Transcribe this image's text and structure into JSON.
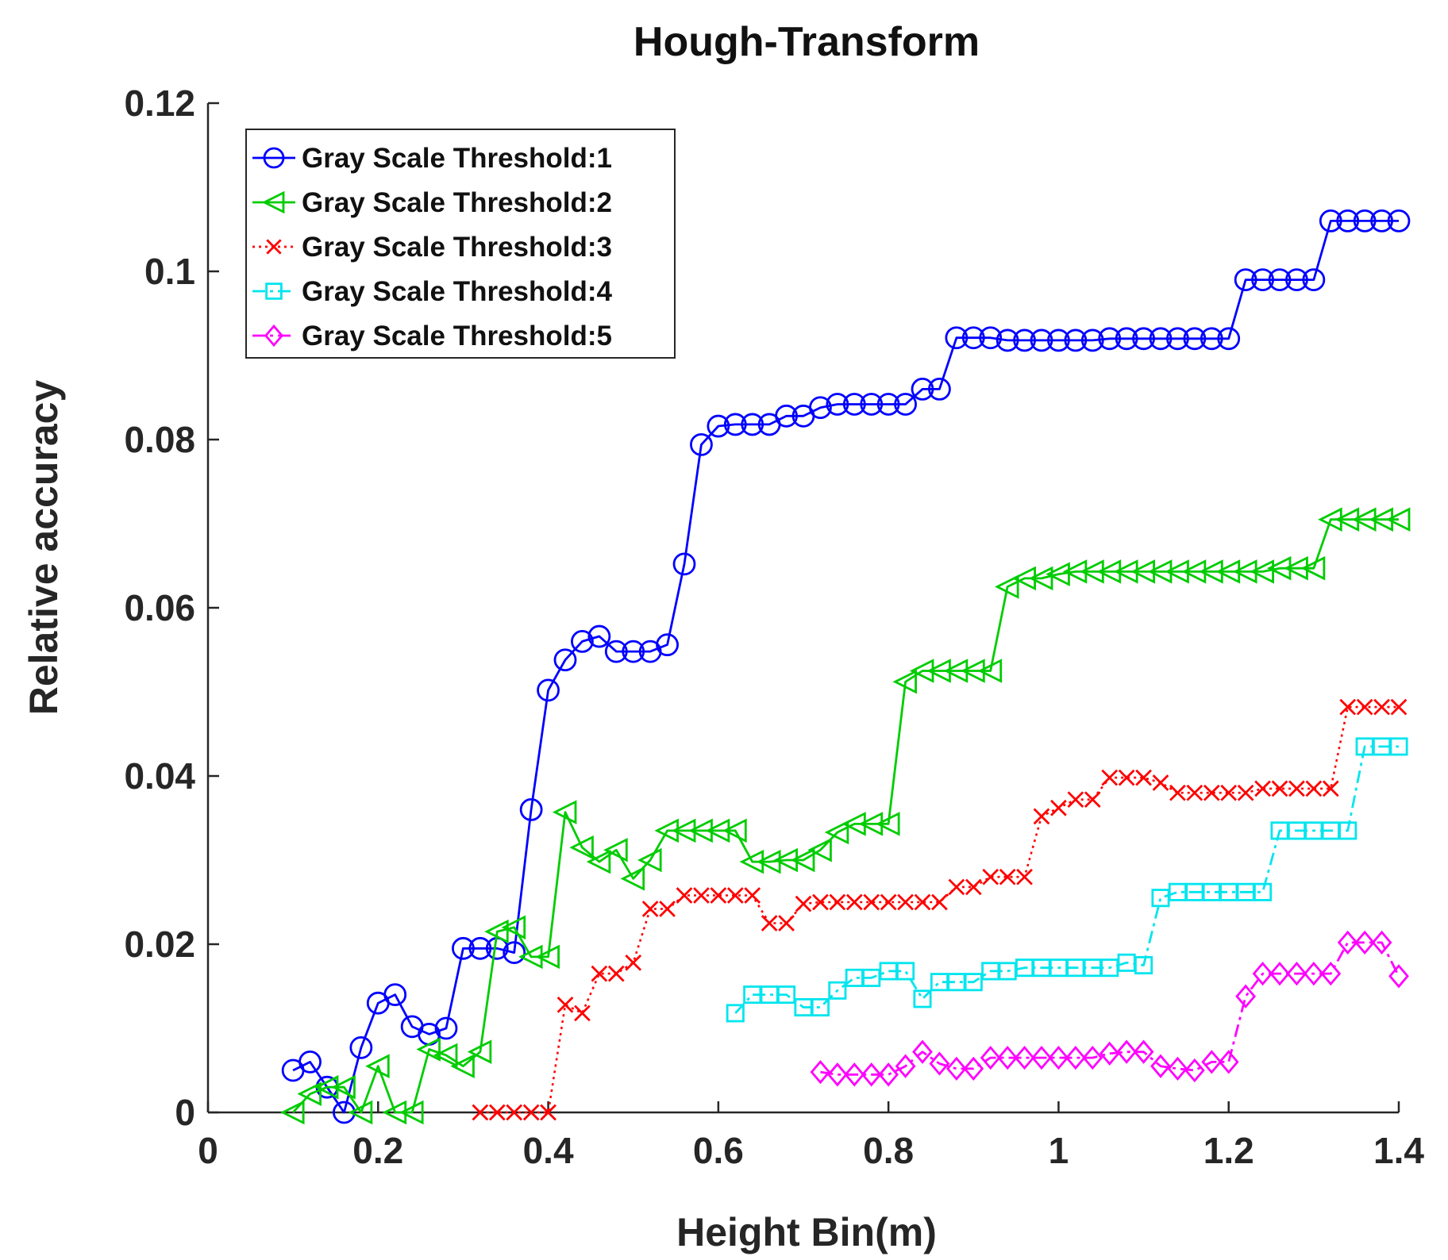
{
  "chart_data": {
    "type": "line",
    "title": "Hough-Transform",
    "xlabel": "Height Bin(m)",
    "ylabel": "Relative accuracy",
    "xlim": [
      0,
      1.4
    ],
    "ylim": [
      0,
      0.12
    ],
    "xticks": [
      0,
      0.2,
      0.4,
      0.6,
      0.8,
      1,
      1.2,
      1.4
    ],
    "yticks": [
      0,
      0.02,
      0.04,
      0.06,
      0.08,
      0.1,
      0.12
    ],
    "xtick_labels": [
      "0",
      "0.2",
      "0.4",
      "0.6",
      "0.8",
      "1",
      "1.2",
      "1.4"
    ],
    "ytick_labels": [
      "0",
      "0.02",
      "0.04",
      "0.06",
      "0.08",
      "0.1",
      "0.12"
    ],
    "grid": false,
    "legend_position": "top-left",
    "series": [
      {
        "name": "Gray Scale Threshold:1",
        "color": "#0000ff",
        "marker": "circle",
        "line_style": "solid",
        "x": [
          0.1,
          0.12,
          0.14,
          0.16,
          0.18,
          0.2,
          0.22,
          0.24,
          0.26,
          0.28,
          0.3,
          0.32,
          0.34,
          0.36,
          0.38,
          0.4,
          0.42,
          0.44,
          0.46,
          0.48,
          0.5,
          0.52,
          0.54,
          0.56,
          0.58,
          0.6,
          0.62,
          0.64,
          0.66,
          0.68,
          0.7,
          0.72,
          0.74,
          0.76,
          0.78,
          0.8,
          0.82,
          0.84,
          0.86,
          0.88,
          0.9,
          0.92,
          0.94,
          0.96,
          0.98,
          1.0,
          1.02,
          1.04,
          1.06,
          1.08,
          1.1,
          1.12,
          1.14,
          1.16,
          1.18,
          1.2,
          1.22,
          1.24,
          1.26,
          1.28,
          1.3,
          1.32,
          1.34,
          1.36,
          1.38,
          1.4
        ],
        "y": [
          0.005,
          0.006,
          0.003,
          0.0,
          0.0077,
          0.013,
          0.014,
          0.0102,
          0.0093,
          0.01,
          0.0195,
          0.0195,
          0.0195,
          0.019,
          0.036,
          0.0502,
          0.0538,
          0.056,
          0.0566,
          0.0548,
          0.0548,
          0.0548,
          0.0556,
          0.0652,
          0.0794,
          0.0816,
          0.0818,
          0.0818,
          0.0818,
          0.0828,
          0.0828,
          0.0838,
          0.0842,
          0.0842,
          0.0842,
          0.0842,
          0.0842,
          0.086,
          0.086,
          0.0921,
          0.0921,
          0.0921,
          0.0918,
          0.0918,
          0.0918,
          0.0918,
          0.0918,
          0.0918,
          0.092,
          0.092,
          0.092,
          0.092,
          0.092,
          0.092,
          0.092,
          0.092,
          0.099,
          0.099,
          0.099,
          0.099,
          0.099,
          0.106,
          0.106,
          0.106,
          0.106,
          0.106
        ]
      },
      {
        "name": "Gray Scale Threshold:2",
        "color": "#00cc00",
        "marker": "triangle-left",
        "line_style": "solid",
        "x": [
          0.1,
          0.12,
          0.14,
          0.16,
          0.18,
          0.2,
          0.22,
          0.24,
          0.26,
          0.28,
          0.3,
          0.32,
          0.34,
          0.36,
          0.38,
          0.4,
          0.42,
          0.44,
          0.46,
          0.48,
          0.5,
          0.52,
          0.54,
          0.56,
          0.58,
          0.6,
          0.62,
          0.64,
          0.66,
          0.68,
          0.7,
          0.72,
          0.74,
          0.76,
          0.78,
          0.8,
          0.82,
          0.84,
          0.86,
          0.88,
          0.9,
          0.92,
          0.94,
          0.96,
          0.98,
          1.0,
          1.02,
          1.04,
          1.06,
          1.08,
          1.1,
          1.12,
          1.14,
          1.16,
          1.18,
          1.2,
          1.22,
          1.24,
          1.26,
          1.28,
          1.3,
          1.32,
          1.34,
          1.36,
          1.38,
          1.4
        ],
        "y": [
          0.0,
          0.0022,
          0.003,
          0.003,
          0.0,
          0.0055,
          0.0,
          0.0,
          0.0075,
          0.0068,
          0.0055,
          0.0072,
          0.0215,
          0.022,
          0.0185,
          0.0185,
          0.0357,
          0.0315,
          0.0298,
          0.0312,
          0.0278,
          0.03,
          0.0335,
          0.0335,
          0.0335,
          0.0335,
          0.0335,
          0.0298,
          0.0298,
          0.03,
          0.03,
          0.0312,
          0.0333,
          0.0343,
          0.0343,
          0.0343,
          0.0512,
          0.0525,
          0.0525,
          0.0525,
          0.0525,
          0.0525,
          0.0625,
          0.0635,
          0.0635,
          0.064,
          0.0643,
          0.0643,
          0.0643,
          0.0643,
          0.0643,
          0.0643,
          0.0643,
          0.0643,
          0.0643,
          0.0643,
          0.0643,
          0.0643,
          0.0647,
          0.0647,
          0.0647,
          0.0705,
          0.0705,
          0.0705,
          0.0705,
          0.0705
        ]
      },
      {
        "name": "Gray Scale Threshold:3",
        "color": "#ff0000",
        "marker": "x",
        "line_style": "dotted",
        "x": [
          0.32,
          0.34,
          0.36,
          0.38,
          0.4,
          0.42,
          0.44,
          0.46,
          0.48,
          0.5,
          0.52,
          0.54,
          0.56,
          0.58,
          0.6,
          0.62,
          0.64,
          0.66,
          0.68,
          0.7,
          0.72,
          0.74,
          0.76,
          0.78,
          0.8,
          0.82,
          0.84,
          0.86,
          0.88,
          0.9,
          0.92,
          0.94,
          0.96,
          0.98,
          1.0,
          1.02,
          1.04,
          1.06,
          1.08,
          1.1,
          1.12,
          1.14,
          1.16,
          1.18,
          1.2,
          1.22,
          1.24,
          1.26,
          1.28,
          1.3,
          1.32,
          1.34,
          1.36,
          1.38,
          1.4
        ],
        "y": [
          0.0,
          0.0,
          0.0,
          0.0,
          0.0,
          0.0128,
          0.0118,
          0.0165,
          0.0165,
          0.0178,
          0.0242,
          0.0242,
          0.0258,
          0.0258,
          0.0258,
          0.0258,
          0.0258,
          0.0225,
          0.0225,
          0.0248,
          0.025,
          0.025,
          0.025,
          0.025,
          0.025,
          0.025,
          0.025,
          0.025,
          0.0268,
          0.0268,
          0.028,
          0.028,
          0.028,
          0.0352,
          0.0362,
          0.0372,
          0.0372,
          0.0398,
          0.0398,
          0.0398,
          0.0392,
          0.038,
          0.038,
          0.038,
          0.038,
          0.038,
          0.0385,
          0.0385,
          0.0385,
          0.0385,
          0.0385,
          0.0482,
          0.0482,
          0.0482,
          0.0482
        ]
      },
      {
        "name": "Gray Scale Threshold:4",
        "color": "#00e5ee",
        "marker": "square",
        "line_style": "dashdot",
        "x": [
          0.62,
          0.64,
          0.66,
          0.68,
          0.7,
          0.72,
          0.74,
          0.76,
          0.78,
          0.8,
          0.82,
          0.84,
          0.86,
          0.88,
          0.9,
          0.92,
          0.94,
          0.96,
          0.98,
          1.0,
          1.02,
          1.04,
          1.06,
          1.08,
          1.1,
          1.12,
          1.14,
          1.16,
          1.18,
          1.2,
          1.22,
          1.24,
          1.26,
          1.28,
          1.3,
          1.32,
          1.34,
          1.36,
          1.38,
          1.4
        ],
        "y": [
          0.0118,
          0.014,
          0.014,
          0.014,
          0.0125,
          0.0125,
          0.0145,
          0.016,
          0.016,
          0.0168,
          0.0168,
          0.0135,
          0.0155,
          0.0155,
          0.0155,
          0.0168,
          0.0168,
          0.0172,
          0.0172,
          0.0172,
          0.0172,
          0.0172,
          0.0172,
          0.0178,
          0.0175,
          0.0255,
          0.0262,
          0.0262,
          0.0262,
          0.0262,
          0.0262,
          0.0262,
          0.0335,
          0.0335,
          0.0335,
          0.0335,
          0.0335,
          0.0435,
          0.0435,
          0.0435
        ]
      },
      {
        "name": "Gray Scale Threshold:5",
        "color": "#ff00ff",
        "marker": "diamond",
        "line_style": "dashdot",
        "x": [
          0.72,
          0.74,
          0.76,
          0.78,
          0.8,
          0.82,
          0.84,
          0.86,
          0.88,
          0.9,
          0.92,
          0.94,
          0.96,
          0.98,
          1.0,
          1.02,
          1.04,
          1.06,
          1.08,
          1.1,
          1.12,
          1.14,
          1.16,
          1.18,
          1.2,
          1.22,
          1.24,
          1.26,
          1.28,
          1.3,
          1.32,
          1.34,
          1.36,
          1.38,
          1.4
        ],
        "y": [
          0.0048,
          0.0045,
          0.0045,
          0.0045,
          0.0045,
          0.0055,
          0.0072,
          0.0058,
          0.0052,
          0.0052,
          0.0065,
          0.0065,
          0.0065,
          0.0065,
          0.0065,
          0.0065,
          0.0065,
          0.007,
          0.0072,
          0.0072,
          0.0055,
          0.0052,
          0.005,
          0.006,
          0.006,
          0.0138,
          0.0165,
          0.0165,
          0.0165,
          0.0165,
          0.0165,
          0.0202,
          0.0202,
          0.0202,
          0.0162
        ]
      }
    ]
  }
}
